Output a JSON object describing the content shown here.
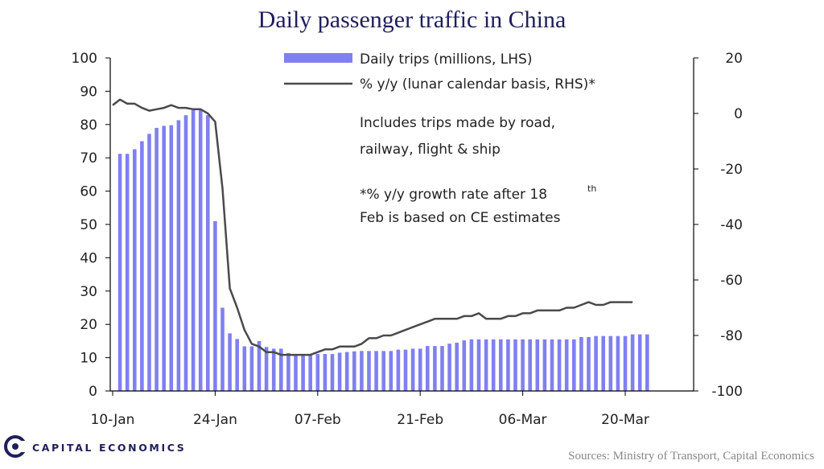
{
  "chart_data": {
    "type": "bar+line",
    "title": "Daily passenger traffic in China",
    "x_tick_labels": [
      "10-Jan",
      "24-Jan",
      "07-Feb",
      "21-Feb",
      "06-Mar",
      "20-Mar"
    ],
    "x_tick_day_index": [
      0,
      14,
      28,
      42,
      56,
      70
    ],
    "y_left": {
      "min": 0,
      "max": 100,
      "ticks": [
        0,
        10,
        20,
        30,
        40,
        50,
        60,
        70,
        80,
        90,
        100
      ]
    },
    "y_right": {
      "min": -100,
      "max": 20,
      "ticks": [
        20,
        0,
        -20,
        -40,
        -60,
        -80,
        -100
      ]
    },
    "series": [
      {
        "name": "Daily trips (millions, LHS)",
        "type": "bar",
        "axis": "left",
        "color": "#8080f0",
        "start_day_index": 1,
        "values": [
          71.2,
          71.2,
          72.6,
          75.0,
          77.2,
          79.0,
          79.6,
          79.8,
          81.3,
          82.8,
          84.3,
          84.3,
          82.8,
          51.0,
          25.0,
          17.3,
          15.6,
          13.4,
          13.4,
          15.0,
          13.2,
          12.7,
          12.7,
          11.4,
          11.1,
          11.1,
          11.1,
          11.1,
          11.1,
          11.1,
          11.5,
          11.7,
          11.9,
          12.0,
          12.0,
          12.0,
          12.0,
          12.0,
          12.4,
          12.4,
          12.7,
          12.7,
          13.5,
          13.5,
          13.5,
          14.2,
          14.5,
          15.2,
          15.5,
          15.5,
          15.5,
          15.5,
          15.5,
          15.5,
          15.5,
          15.5,
          15.5,
          15.5,
          15.5,
          15.5,
          15.5,
          15.5,
          15.5,
          16.2,
          16.2,
          16.5,
          16.5,
          16.5,
          16.5,
          16.5,
          17.0,
          17.0,
          17.0
        ]
      },
      {
        "name": "% y/y (lunar calendar basis, RHS)*",
        "type": "line",
        "axis": "right",
        "color": "#4a4a4a",
        "start_day_index": 0,
        "values": [
          3,
          5,
          3.5,
          3.5,
          2,
          1,
          1.5,
          2,
          3,
          2,
          2,
          1.5,
          1.5,
          0,
          -3,
          -27,
          -63,
          -70,
          -78,
          -83,
          -84,
          -86,
          -86,
          -87,
          -87,
          -87,
          -87,
          -87,
          -86,
          -85,
          -85,
          -84,
          -84,
          -84,
          -83,
          -81,
          -81,
          -80,
          -80,
          -79,
          -78,
          -77,
          -76,
          -75,
          -74,
          -74,
          -74,
          -74,
          -73,
          -73,
          -72,
          -74,
          -74,
          -74,
          -73,
          -73,
          -72,
          -72,
          -71,
          -71,
          -71,
          -71,
          -70,
          -70,
          -69,
          -68,
          -69,
          -69,
          -68,
          -68,
          -68,
          -68
        ]
      }
    ],
    "annotations": [
      "Includes  trips  made by  road,",
      "railway,  flight  &  ship",
      "*%  y/y growth  rate after  18",
      "th",
      "Feb  is based on  CE estimates"
    ]
  },
  "source": "Sources: Ministry of Transport, Capital Economics",
  "brand": {
    "name": "CAPITAL ECONOMICS"
  }
}
